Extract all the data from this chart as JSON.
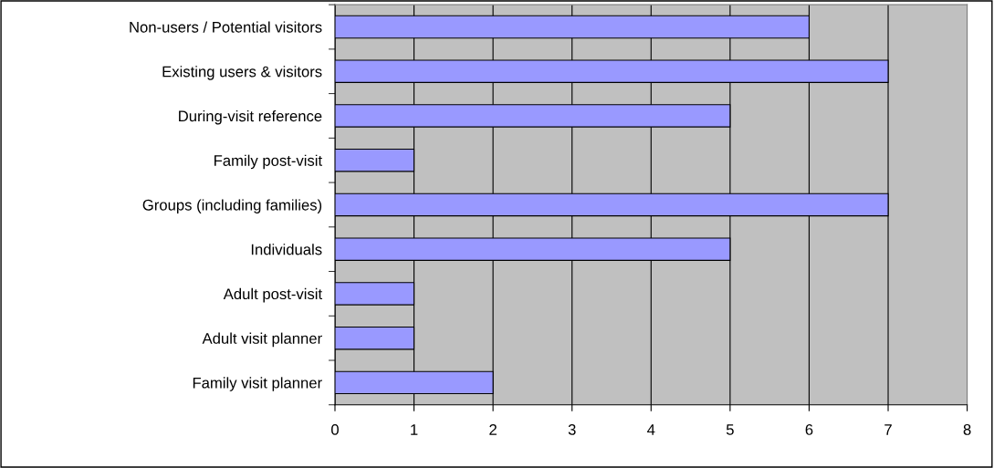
{
  "chart_data": {
    "type": "bar",
    "orientation": "horizontal",
    "categories": [
      "Non-users / Potential visitors",
      "Existing users & visitors",
      "During-visit reference",
      "Family post-visit",
      "Groups (including families)",
      "Individuals",
      "Adult post-visit",
      "Adult visit planner",
      "Family visit planner"
    ],
    "values": [
      6,
      7,
      5,
      1,
      7,
      5,
      1,
      1,
      2
    ],
    "color": "#9999ff",
    "xlim": [
      0,
      8
    ],
    "xticks": [
      0,
      1,
      2,
      3,
      4,
      5,
      6,
      7,
      8
    ],
    "grid": "x",
    "legend": false
  }
}
